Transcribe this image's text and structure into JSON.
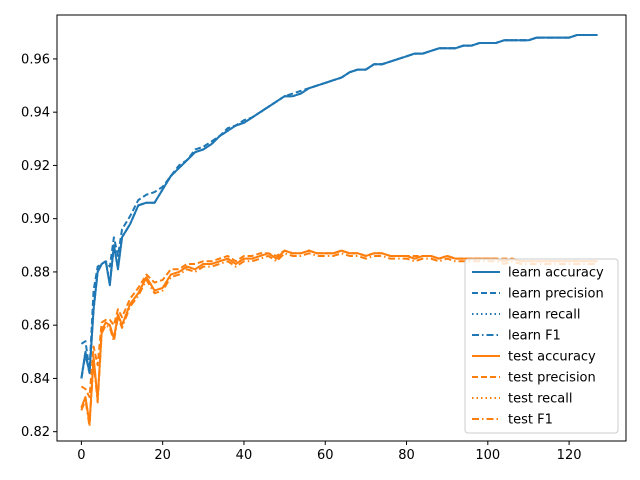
{
  "chart_data": {
    "type": "line",
    "title": "",
    "xlabel": "",
    "ylabel": "",
    "xlim": [
      -6,
      134
    ],
    "ylim": [
      0.8165,
      0.9765
    ],
    "xticks": [
      0,
      20,
      40,
      60,
      80,
      100,
      120
    ],
    "xtick_labels": [
      "0",
      "20",
      "40",
      "60",
      "80",
      "100",
      "120"
    ],
    "yticks": [
      0.82,
      0.84,
      0.86,
      0.88,
      0.9,
      0.92,
      0.94,
      0.96
    ],
    "ytick_labels": [
      "0.82",
      "0.84",
      "0.86",
      "0.88",
      "0.90",
      "0.92",
      "0.94",
      "0.96"
    ],
    "grid": false,
    "legend_position": "lower-right",
    "x": [
      0,
      1,
      2,
      3,
      4,
      5,
      6,
      7,
      8,
      9,
      10,
      12,
      14,
      16,
      18,
      20,
      22,
      24,
      26,
      28,
      30,
      32,
      34,
      36,
      38,
      40,
      42,
      44,
      46,
      48,
      50,
      52,
      54,
      56,
      58,
      60,
      62,
      64,
      66,
      68,
      70,
      72,
      74,
      76,
      78,
      80,
      82,
      84,
      86,
      88,
      90,
      92,
      94,
      96,
      98,
      100,
      102,
      104,
      106,
      108,
      110,
      112,
      114,
      116,
      118,
      120,
      122,
      124,
      126,
      127
    ],
    "series": [
      {
        "name": "learn accuracy",
        "color": "#1f77b4",
        "linestyle": "solid",
        "values": [
          0.84,
          0.85,
          0.842,
          0.866,
          0.88,
          0.883,
          0.884,
          0.875,
          0.89,
          0.881,
          0.893,
          0.898,
          0.905,
          0.906,
          0.906,
          0.911,
          0.916,
          0.919,
          0.922,
          0.925,
          0.926,
          0.928,
          0.931,
          0.933,
          0.935,
          0.936,
          0.938,
          0.94,
          0.942,
          0.944,
          0.946,
          0.946,
          0.947,
          0.949,
          0.95,
          0.951,
          0.952,
          0.953,
          0.955,
          0.956,
          0.956,
          0.958,
          0.958,
          0.959,
          0.96,
          0.961,
          0.962,
          0.962,
          0.963,
          0.964,
          0.964,
          0.964,
          0.965,
          0.965,
          0.966,
          0.966,
          0.966,
          0.967,
          0.967,
          0.967,
          0.967,
          0.968,
          0.968,
          0.968,
          0.968,
          0.968,
          0.969,
          0.969,
          0.969,
          0.969
        ]
      },
      {
        "name": "learn precision",
        "color": "#1f77b4",
        "linestyle": "dashed",
        "values": [
          0.853,
          0.854,
          0.843,
          0.873,
          0.882,
          0.883,
          0.884,
          0.882,
          0.893,
          0.886,
          0.896,
          0.901,
          0.907,
          0.909,
          0.91,
          0.912,
          0.916,
          0.92,
          0.922,
          0.926,
          0.927,
          0.929,
          0.931,
          0.934,
          0.935,
          0.937,
          0.938,
          0.94,
          0.942,
          0.944,
          0.946,
          0.947,
          0.948,
          0.949,
          0.95,
          0.951,
          0.952,
          0.953,
          0.955,
          0.956,
          0.956,
          0.958,
          0.958,
          0.959,
          0.96,
          0.961,
          0.962,
          0.962,
          0.963,
          0.964,
          0.964,
          0.964,
          0.965,
          0.965,
          0.966,
          0.966,
          0.966,
          0.967,
          0.967,
          0.967,
          0.967,
          0.968,
          0.968,
          0.968,
          0.968,
          0.968,
          0.969,
          0.969,
          0.969,
          0.969
        ]
      },
      {
        "name": "learn recall",
        "color": "#1f77b4",
        "linestyle": "dotted",
        "values": [
          0.84,
          0.85,
          0.842,
          0.866,
          0.88,
          0.883,
          0.884,
          0.875,
          0.89,
          0.881,
          0.893,
          0.898,
          0.905,
          0.906,
          0.906,
          0.911,
          0.916,
          0.919,
          0.922,
          0.925,
          0.926,
          0.928,
          0.931,
          0.933,
          0.935,
          0.936,
          0.938,
          0.94,
          0.942,
          0.944,
          0.946,
          0.946,
          0.947,
          0.949,
          0.95,
          0.951,
          0.952,
          0.953,
          0.955,
          0.956,
          0.956,
          0.958,
          0.958,
          0.959,
          0.96,
          0.961,
          0.962,
          0.962,
          0.963,
          0.964,
          0.964,
          0.964,
          0.965,
          0.965,
          0.966,
          0.966,
          0.966,
          0.967,
          0.967,
          0.967,
          0.967,
          0.968,
          0.968,
          0.968,
          0.968,
          0.968,
          0.969,
          0.969,
          0.969,
          0.969
        ]
      },
      {
        "name": "learn F1",
        "color": "#1f77b4",
        "linestyle": "dashdot",
        "values": [
          0.84,
          0.849,
          0.842,
          0.866,
          0.88,
          0.883,
          0.884,
          0.876,
          0.89,
          0.882,
          0.893,
          0.898,
          0.905,
          0.906,
          0.906,
          0.911,
          0.916,
          0.919,
          0.922,
          0.925,
          0.926,
          0.928,
          0.931,
          0.933,
          0.935,
          0.936,
          0.938,
          0.94,
          0.942,
          0.944,
          0.946,
          0.946,
          0.947,
          0.949,
          0.95,
          0.951,
          0.952,
          0.953,
          0.955,
          0.956,
          0.956,
          0.958,
          0.958,
          0.959,
          0.96,
          0.961,
          0.962,
          0.962,
          0.963,
          0.964,
          0.964,
          0.964,
          0.965,
          0.965,
          0.966,
          0.966,
          0.966,
          0.967,
          0.967,
          0.967,
          0.967,
          0.968,
          0.968,
          0.968,
          0.968,
          0.968,
          0.969,
          0.969,
          0.969,
          0.969
        ]
      },
      {
        "name": "test accuracy",
        "color": "#ff7f0e",
        "linestyle": "solid",
        "values": [
          0.829,
          0.833,
          0.823,
          0.848,
          0.832,
          0.858,
          0.861,
          0.86,
          0.855,
          0.864,
          0.86,
          0.868,
          0.872,
          0.878,
          0.873,
          0.874,
          0.879,
          0.88,
          0.882,
          0.881,
          0.883,
          0.883,
          0.884,
          0.885,
          0.883,
          0.885,
          0.885,
          0.886,
          0.887,
          0.885,
          0.888,
          0.887,
          0.887,
          0.888,
          0.887,
          0.887,
          0.887,
          0.888,
          0.887,
          0.887,
          0.886,
          0.887,
          0.887,
          0.886,
          0.886,
          0.886,
          0.885,
          0.886,
          0.886,
          0.885,
          0.886,
          0.885,
          0.885,
          0.885,
          0.885,
          0.885,
          0.885,
          0.884,
          0.885,
          0.884,
          0.884,
          0.884,
          0.884,
          0.884,
          0.884,
          0.884,
          0.884,
          0.884,
          0.884,
          0.884
        ]
      },
      {
        "name": "test precision",
        "color": "#ff7f0e",
        "linestyle": "dashed",
        "values": [
          0.837,
          0.836,
          0.833,
          0.852,
          0.845,
          0.861,
          0.862,
          0.862,
          0.86,
          0.866,
          0.863,
          0.87,
          0.874,
          0.879,
          0.876,
          0.877,
          0.881,
          0.881,
          0.883,
          0.883,
          0.884,
          0.884,
          0.885,
          0.886,
          0.884,
          0.886,
          0.886,
          0.887,
          0.887,
          0.886,
          0.888,
          0.887,
          0.887,
          0.888,
          0.887,
          0.887,
          0.887,
          0.888,
          0.887,
          0.887,
          0.886,
          0.887,
          0.887,
          0.886,
          0.886,
          0.886,
          0.886,
          0.886,
          0.886,
          0.885,
          0.886,
          0.885,
          0.885,
          0.885,
          0.885,
          0.885,
          0.885,
          0.885,
          0.885,
          0.884,
          0.884,
          0.884,
          0.884,
          0.884,
          0.884,
          0.884,
          0.884,
          0.884,
          0.884,
          0.884
        ]
      },
      {
        "name": "test recall",
        "color": "#ff7f0e",
        "linestyle": "dotted",
        "values": [
          0.829,
          0.833,
          0.823,
          0.848,
          0.832,
          0.858,
          0.861,
          0.86,
          0.855,
          0.864,
          0.86,
          0.868,
          0.872,
          0.878,
          0.873,
          0.874,
          0.879,
          0.88,
          0.882,
          0.881,
          0.883,
          0.883,
          0.884,
          0.885,
          0.883,
          0.885,
          0.885,
          0.886,
          0.887,
          0.885,
          0.888,
          0.887,
          0.887,
          0.888,
          0.887,
          0.887,
          0.887,
          0.888,
          0.887,
          0.887,
          0.886,
          0.887,
          0.887,
          0.886,
          0.886,
          0.886,
          0.885,
          0.886,
          0.886,
          0.885,
          0.886,
          0.885,
          0.885,
          0.885,
          0.885,
          0.885,
          0.885,
          0.884,
          0.885,
          0.884,
          0.884,
          0.884,
          0.884,
          0.884,
          0.884,
          0.884,
          0.884,
          0.884,
          0.884,
          0.884
        ]
      },
      {
        "name": "test F1",
        "color": "#ff7f0e",
        "linestyle": "dashdot",
        "values": [
          0.828,
          0.832,
          0.822,
          0.847,
          0.831,
          0.857,
          0.86,
          0.859,
          0.854,
          0.863,
          0.859,
          0.867,
          0.871,
          0.877,
          0.872,
          0.873,
          0.878,
          0.879,
          0.881,
          0.88,
          0.882,
          0.882,
          0.883,
          0.884,
          0.882,
          0.884,
          0.884,
          0.885,
          0.886,
          0.884,
          0.887,
          0.886,
          0.886,
          0.887,
          0.886,
          0.886,
          0.886,
          0.887,
          0.886,
          0.886,
          0.885,
          0.886,
          0.886,
          0.885,
          0.885,
          0.885,
          0.884,
          0.885,
          0.885,
          0.884,
          0.885,
          0.884,
          0.884,
          0.884,
          0.884,
          0.884,
          0.884,
          0.883,
          0.884,
          0.883,
          0.883,
          0.883,
          0.883,
          0.883,
          0.883,
          0.883,
          0.883,
          0.883,
          0.883,
          0.883
        ]
      }
    ]
  }
}
